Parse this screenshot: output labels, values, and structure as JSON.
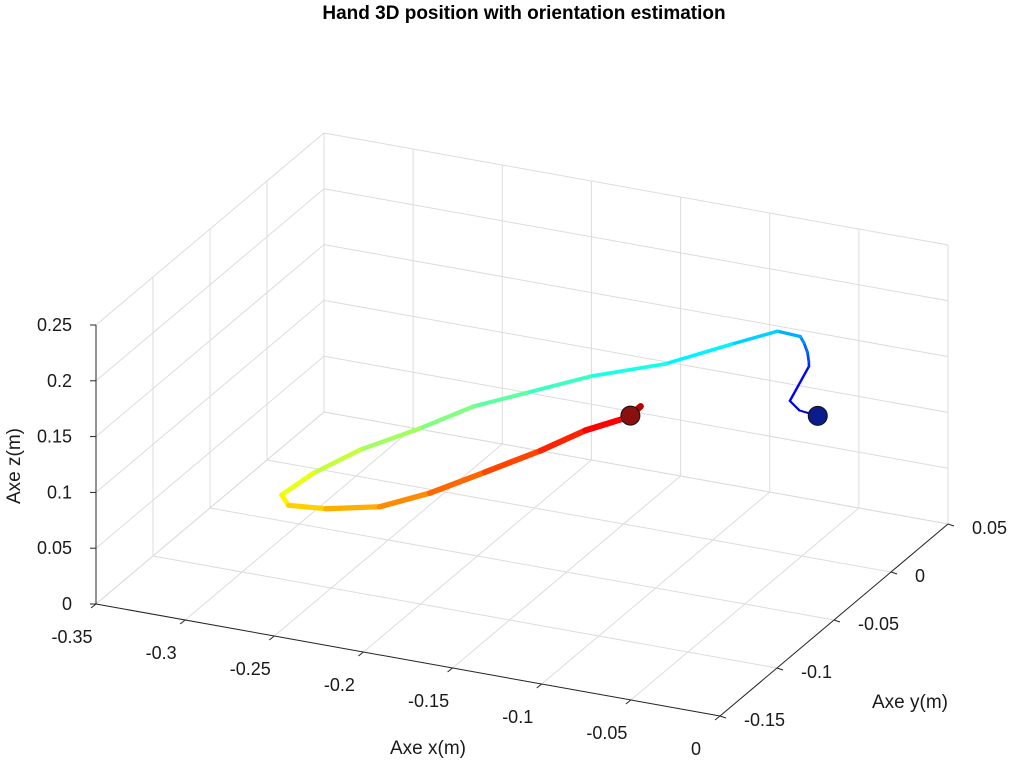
{
  "chart_data": {
    "type": "line",
    "projection": "3d",
    "title": "Hand 3D position with orientation estimation",
    "xlabel": "Axe x(m)",
    "ylabel": "Axe y(m)",
    "zlabel": "Axe z(m)",
    "xlim": [
      -0.35,
      0
    ],
    "ylim": [
      -0.15,
      0.05
    ],
    "zlim": [
      0,
      0.25
    ],
    "x_ticks": [
      "-0.35",
      "-0.3",
      "-0.25",
      "-0.2",
      "-0.15",
      "-0.1",
      "-0.05",
      "0"
    ],
    "y_ticks": [
      "-0.15",
      "-0.1",
      "-0.05",
      "0",
      "0.05"
    ],
    "z_ticks": [
      "0",
      "0.05",
      "0.1",
      "0.15",
      "0.2",
      "0.25"
    ],
    "grid": true,
    "colormap": "jet",
    "series": [
      {
        "x": [
          -0.043,
          -0.052,
          -0.058,
          -0.062,
          -0.064,
          -0.066,
          -0.068,
          -0.072,
          -0.086,
          -0.11,
          -0.145,
          -0.185,
          -0.215,
          -0.238,
          -0.26,
          -0.285,
          -0.303,
          -0.313,
          -0.306,
          -0.285,
          -0.26,
          -0.237,
          -0.212,
          -0.187,
          -0.167,
          -0.148,
          -0.143,
          -0.15
        ],
        "y": [
          0.003,
          0.001,
          0.002,
          0.025,
          0.028,
          0.03,
          0.03,
          0.033,
          0.035,
          0.032,
          0.029,
          0.026,
          0.016,
          0.006,
          -0.007,
          -0.02,
          -0.033,
          -0.045,
          -0.05,
          -0.05,
          -0.042,
          -0.034,
          -0.025,
          -0.015,
          -0.007,
          0.0,
          0.004,
          0.006
        ],
        "z": [
          0.125,
          0.129,
          0.135,
          0.145,
          0.146,
          0.152,
          0.16,
          0.162,
          0.161,
          0.145,
          0.12,
          0.1,
          0.085,
          0.075,
          0.06,
          0.045,
          0.03,
          0.018,
          0.015,
          0.018,
          0.02,
          0.032,
          0.05,
          0.068,
          0.085,
          0.096,
          0.104,
          0.092
        ]
      }
    ],
    "markers": [
      {
        "name": "start",
        "x": -0.043,
        "y": 0.003,
        "z": 0.125,
        "color": "#0c1c8c"
      },
      {
        "name": "end",
        "x": -0.15,
        "y": 0.006,
        "z": 0.092,
        "color": "#8b0f0f"
      }
    ]
  }
}
